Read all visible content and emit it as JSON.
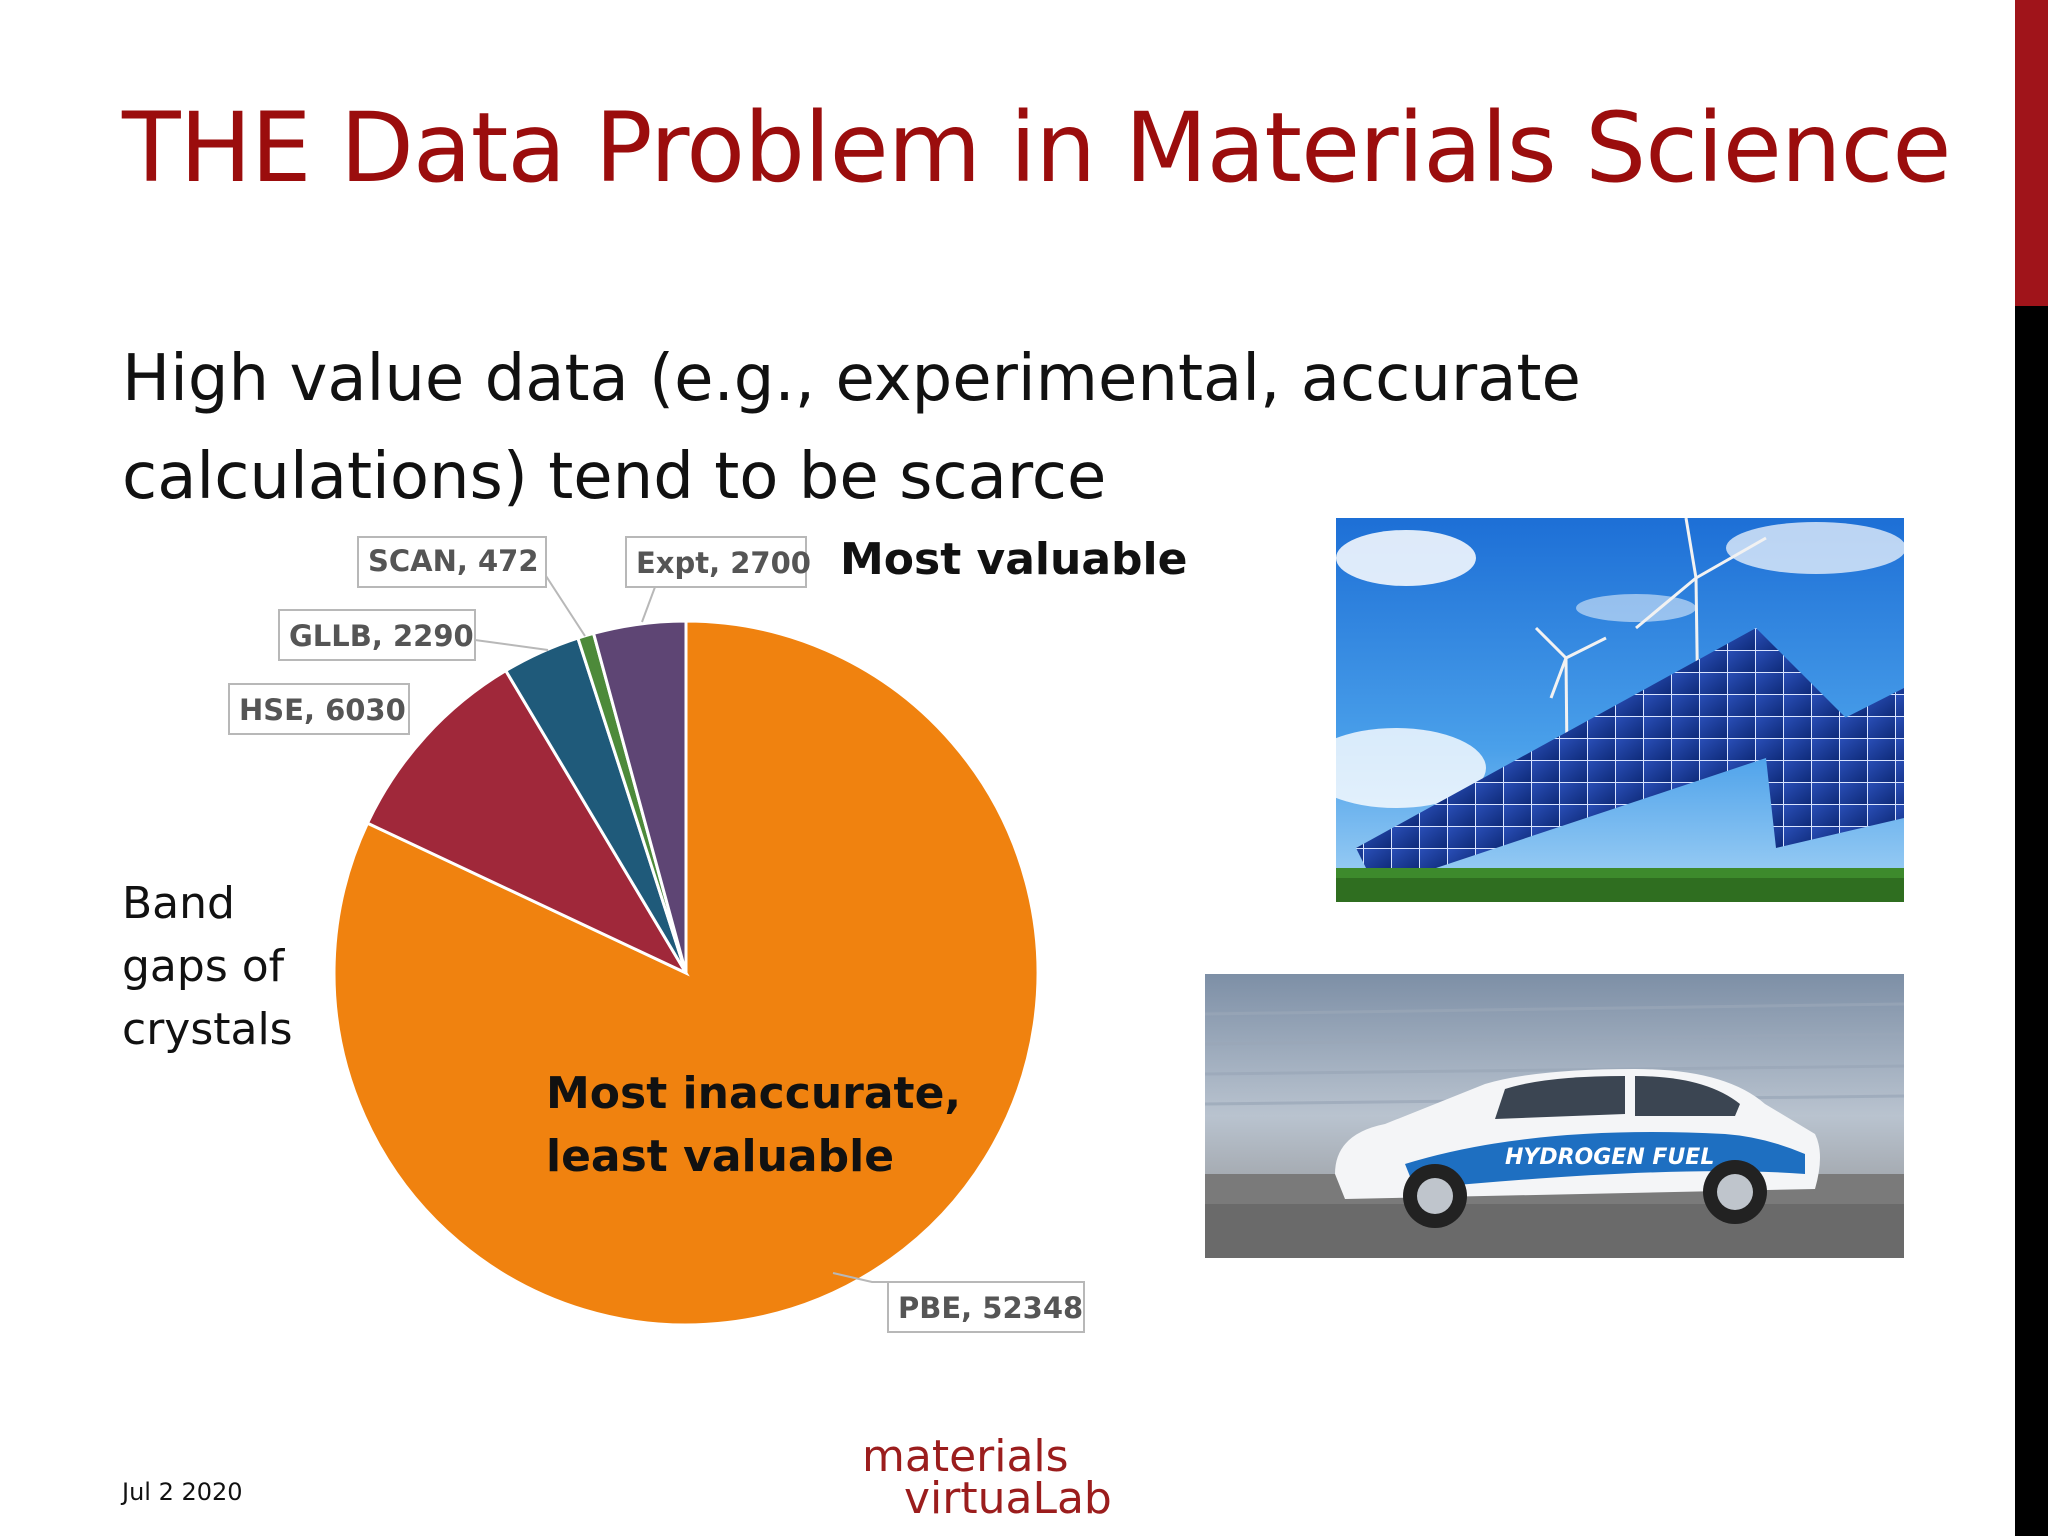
{
  "slide": {
    "title": "THE Data Problem in Materials Science",
    "bullet": "High value data (e.g., experimental, accurate calculations) tend to be scarce",
    "side_label_lines": [
      "Band",
      "gaps of",
      "crystals"
    ],
    "annotation_top": "Most valuable",
    "annotation_pie_lines": [
      "Most inaccurate,",
      "least valuable"
    ],
    "date": "Jul 2 2020",
    "logo_lines": [
      "materials",
      "virtuaLab"
    ],
    "colors": {
      "title": "#9b0d0d",
      "accent": "#a0141a"
    }
  },
  "chart_data": {
    "type": "pie",
    "start_angle_deg": 0,
    "direction": "clockwise",
    "slices": [
      {
        "label": "PBE, 52348",
        "category": "PBE",
        "value": 52348,
        "color": "#f0820f"
      },
      {
        "label": "HSE, 6030",
        "category": "HSE",
        "value": 6030,
        "color": "#a0283a"
      },
      {
        "label": "GLLB, 2290",
        "category": "GLLB",
        "value": 2290,
        "color": "#1f5a7a"
      },
      {
        "label": "SCAN, 472",
        "category": "SCAN",
        "value": 472,
        "color": "#4d8a3a"
      },
      {
        "label": "Expt, 2700",
        "category": "Expt",
        "value": 2700,
        "color": "#5e4574"
      }
    ]
  },
  "images": [
    {
      "name": "solar-panels-and-wind-turbines-photo"
    },
    {
      "name": "hydrogen-fuel-car-photo",
      "caption_text": "HYDROGEN FUEL"
    }
  ]
}
